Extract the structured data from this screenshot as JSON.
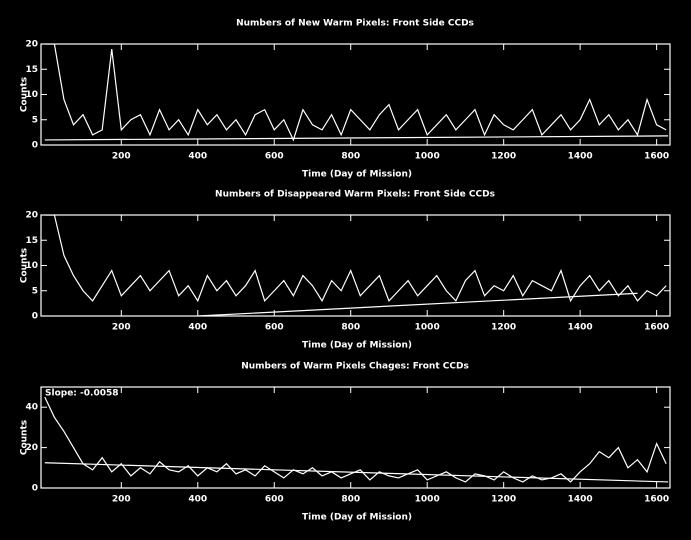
{
  "chart_data": [
    {
      "type": "line",
      "title": "Numbers of New Warm Pixels: Front Side CCDs",
      "xlabel": "Time (Day of Mission)",
      "ylabel": "Counts",
      "xlim": [
        -10,
        1635
      ],
      "xticks": [
        200,
        400,
        600,
        800,
        1000,
        1200,
        1400,
        1600
      ],
      "ylim": [
        0,
        20
      ],
      "yticks": [
        0,
        5,
        10,
        15,
        20
      ],
      "series": [
        {
          "color": "#ffffff",
          "x": [
            0,
            25,
            50,
            75,
            100,
            125,
            150,
            175,
            200,
            225,
            250,
            275,
            300,
            325,
            350,
            375,
            400,
            425,
            450,
            475,
            500,
            525,
            550,
            575,
            600,
            625,
            650,
            675,
            700,
            725,
            750,
            775,
            800,
            825,
            850,
            875,
            900,
            925,
            950,
            975,
            1000,
            1025,
            1050,
            1075,
            1100,
            1125,
            1150,
            1175,
            1200,
            1225,
            1250,
            1275,
            1300,
            1325,
            1350,
            1375,
            1400,
            1425,
            1450,
            1475,
            1500,
            1525,
            1550,
            1575,
            1600,
            1625
          ],
          "values": [
            20,
            20,
            9,
            4,
            6,
            2,
            3,
            19,
            3,
            5,
            6,
            2,
            7,
            3,
            5,
            2,
            7,
            4,
            6,
            3,
            5,
            2,
            6,
            7,
            3,
            5,
            1,
            7,
            4,
            3,
            6,
            2,
            7,
            5,
            3,
            6,
            8,
            3,
            5,
            7,
            2,
            4,
            6,
            3,
            5,
            7,
            2,
            6,
            4,
            3,
            5,
            7,
            2,
            4,
            6,
            3,
            5,
            9,
            4,
            6,
            3,
            5,
            2,
            9,
            4,
            3
          ]
        },
        {
          "color": "#ffffff",
          "x": [
            0,
            1630
          ],
          "values": [
            1,
            1.8
          ]
        }
      ]
    },
    {
      "type": "line",
      "title": "Numbers of Disappeared Warm Pixels: Front Side CCDs",
      "xlabel": "Time (Day of Mission)",
      "ylabel": "Counts",
      "xlim": [
        -10,
        1635
      ],
      "xticks": [
        200,
        400,
        600,
        800,
        1000,
        1200,
        1400,
        1600
      ],
      "ylim": [
        0,
        20
      ],
      "yticks": [
        0,
        5,
        10,
        15,
        20
      ],
      "series": [
        {
          "color": "#ffffff",
          "x": [
            0,
            25,
            50,
            75,
            100,
            125,
            150,
            175,
            200,
            225,
            250,
            275,
            300,
            325,
            350,
            375,
            400,
            425,
            450,
            475,
            500,
            525,
            550,
            575,
            600,
            625,
            650,
            675,
            700,
            725,
            750,
            775,
            800,
            825,
            850,
            875,
            900,
            925,
            950,
            975,
            1000,
            1025,
            1050,
            1075,
            1100,
            1125,
            1150,
            1175,
            1200,
            1225,
            1250,
            1275,
            1300,
            1325,
            1350,
            1375,
            1400,
            1425,
            1450,
            1475,
            1500,
            1525,
            1550,
            1575,
            1600,
            1625
          ],
          "values": [
            20,
            20,
            12,
            8,
            5,
            3,
            6,
            9,
            4,
            6,
            8,
            5,
            7,
            9,
            4,
            6,
            3,
            8,
            5,
            7,
            4,
            6,
            9,
            3,
            5,
            7,
            4,
            8,
            6,
            3,
            7,
            5,
            9,
            4,
            6,
            8,
            3,
            5,
            7,
            4,
            6,
            8,
            5,
            3,
            7,
            9,
            4,
            6,
            5,
            8,
            4,
            7,
            6,
            5,
            9,
            3,
            6,
            8,
            5,
            7,
            4,
            6,
            3,
            5,
            4,
            6
          ]
        },
        {
          "color": "#ffffff",
          "x": [
            400,
            1550
          ],
          "values": [
            0,
            4.5
          ]
        }
      ]
    },
    {
      "type": "line",
      "title": "Numbers of Warm Pixels Chages: Front CCDs",
      "xlabel": "Time (Day of Mission)",
      "ylabel": "Counts",
      "annotation": "Slope: -0.0058",
      "xlim": [
        -10,
        1635
      ],
      "xticks": [
        200,
        400,
        600,
        800,
        1000,
        1200,
        1400,
        1600
      ],
      "ylim": [
        0,
        50
      ],
      "yticks": [
        0,
        20,
        40
      ],
      "series": [
        {
          "color": "#ffffff",
          "x": [
            0,
            25,
            50,
            75,
            100,
            125,
            150,
            175,
            200,
            225,
            250,
            275,
            300,
            325,
            350,
            375,
            400,
            425,
            450,
            475,
            500,
            525,
            550,
            575,
            600,
            625,
            650,
            675,
            700,
            725,
            750,
            775,
            800,
            825,
            850,
            875,
            900,
            925,
            950,
            975,
            1000,
            1025,
            1050,
            1075,
            1100,
            1125,
            1150,
            1175,
            1200,
            1225,
            1250,
            1275,
            1300,
            1325,
            1350,
            1375,
            1400,
            1425,
            1450,
            1475,
            1500,
            1525,
            1550,
            1575,
            1600,
            1625
          ],
          "values": [
            45,
            35,
            28,
            20,
            12,
            9,
            15,
            8,
            12,
            6,
            10,
            7,
            13,
            9,
            8,
            11,
            6,
            10,
            8,
            12,
            7,
            9,
            6,
            11,
            8,
            5,
            9,
            7,
            10,
            6,
            8,
            5,
            7,
            9,
            4,
            8,
            6,
            5,
            7,
            9,
            4,
            6,
            8,
            5,
            3,
            7,
            6,
            4,
            8,
            5,
            3,
            6,
            4,
            5,
            7,
            3,
            8,
            12,
            18,
            15,
            20,
            10,
            14,
            8,
            22,
            12
          ]
        },
        {
          "color": "#ffffff",
          "x": [
            0,
            1630
          ],
          "values": [
            12.5,
            3
          ]
        }
      ]
    }
  ]
}
